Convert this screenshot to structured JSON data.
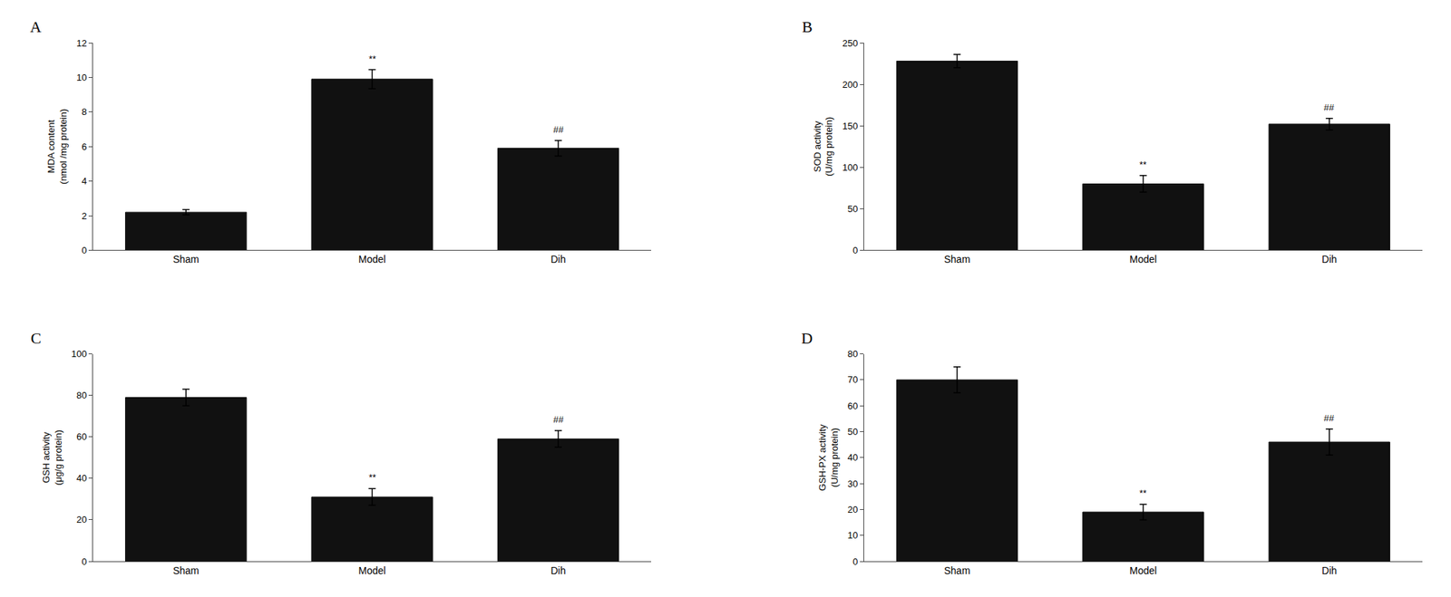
{
  "chart_data": [
    {
      "type": "bar",
      "title": "A",
      "ylabel": "MDA content\n(nmol /mg protein)",
      "categories": [
        "Sham",
        "Model",
        "Dih"
      ],
      "values": [
        2.2,
        9.9,
        5.9
      ],
      "errors": [
        0.15,
        0.55,
        0.45
      ],
      "color": "#111111",
      "ylim": [
        0,
        12
      ],
      "yticks": [
        0,
        2,
        4,
        6,
        8,
        10,
        12
      ],
      "grid": false,
      "annotations": [
        {
          "category": "Model",
          "text": "**"
        },
        {
          "category": "Dih",
          "text": "##"
        }
      ]
    },
    {
      "type": "bar",
      "title": "B",
      "ylabel": "SOD activity\n(U/mg protein)",
      "categories": [
        "Sham",
        "Model",
        "Dih"
      ],
      "values": [
        228,
        80,
        152
      ],
      "errors": [
        8,
        10,
        7
      ],
      "color": "#111111",
      "ylim": [
        0,
        250
      ],
      "yticks": [
        0,
        50,
        100,
        150,
        200,
        250
      ],
      "grid": false,
      "annotations": [
        {
          "category": "Model",
          "text": "**"
        },
        {
          "category": "Dih",
          "text": "##"
        }
      ]
    },
    {
      "type": "bar",
      "title": "C",
      "ylabel": "GSH activity\n(μg/g protein)",
      "categories": [
        "Sham",
        "Model",
        "Dih"
      ],
      "values": [
        79,
        31,
        59
      ],
      "errors": [
        4,
        4,
        4
      ],
      "color": "#111111",
      "ylim": [
        0,
        100
      ],
      "yticks": [
        0,
        20,
        40,
        60,
        80,
        100
      ],
      "grid": false,
      "annotations": [
        {
          "category": "Model",
          "text": "**"
        },
        {
          "category": "Dih",
          "text": "##"
        }
      ]
    },
    {
      "type": "bar",
      "title": "D",
      "ylabel": "GSH-PX activity\n(U/mg protein)",
      "categories": [
        "Sham",
        "Model",
        "Dih"
      ],
      "values": [
        70,
        19,
        46
      ],
      "errors": [
        5,
        3,
        5
      ],
      "color": "#111111",
      "ylim": [
        0,
        80
      ],
      "yticks": [
        0,
        10,
        20,
        30,
        40,
        50,
        60,
        70,
        80
      ],
      "grid": false,
      "annotations": [
        {
          "category": "Model",
          "text": "**"
        },
        {
          "category": "Dih",
          "text": "##"
        }
      ]
    }
  ]
}
